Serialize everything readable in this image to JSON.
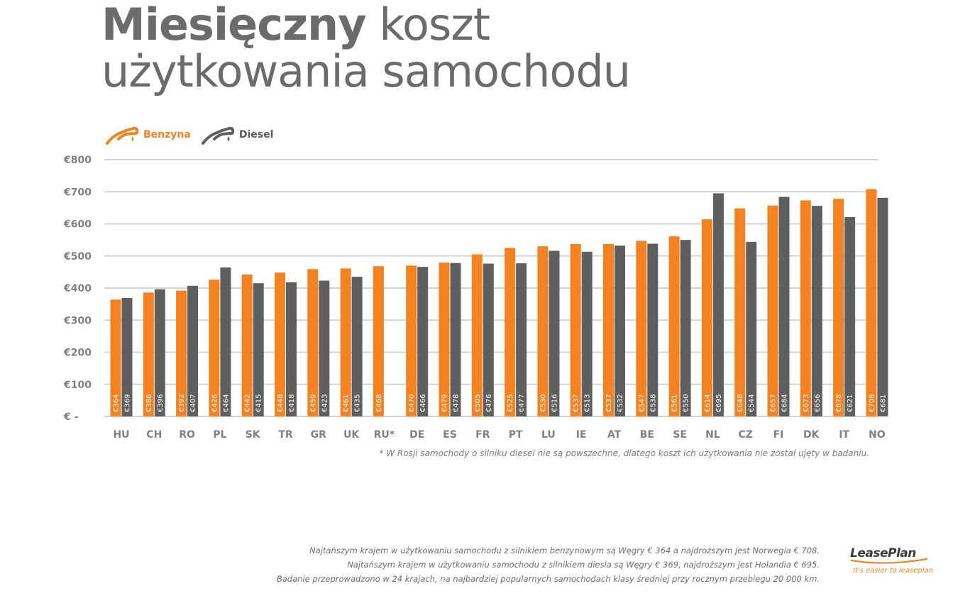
{
  "title": {
    "bold": "Miesięczny",
    "rest_line1": " koszt",
    "line2": "użytkowania samochodu"
  },
  "colors": {
    "benzyna": "#f58220",
    "diesel": "#5f5f5f",
    "grid": "#d4d4d4",
    "axis_text": "#808080"
  },
  "chart_data": {
    "type": "bar",
    "categories": [
      "HU",
      "CH",
      "RO",
      "PL",
      "SK",
      "TR",
      "GR",
      "UK",
      "RU*",
      "DE",
      "ES",
      "FR",
      "PT",
      "LU",
      "IE",
      "AT",
      "BE",
      "SE",
      "NL",
      "CZ",
      "FI",
      "DK",
      "IT",
      "NO"
    ],
    "series": [
      {
        "name": "Benzyna",
        "values": [
          364,
          386,
          392,
          426,
          442,
          448,
          459,
          461,
          468,
          470,
          479,
          505,
          525,
          530,
          537,
          537,
          547,
          561,
          614,
          648,
          657,
          673,
          678,
          708
        ],
        "labels": [
          "€364",
          "€386",
          "€392",
          "€426",
          "€442",
          "€448",
          "€459",
          "€461",
          "€468",
          "€470",
          "€479",
          "€505",
          "€525",
          "€530",
          "€537",
          "€537",
          "€547",
          "€561",
          "€614",
          "€648",
          "€657",
          "€673",
          "€678",
          "€708"
        ]
      },
      {
        "name": "Diesel",
        "values": [
          369,
          396,
          407,
          464,
          415,
          418,
          423,
          435,
          null,
          466,
          478,
          476,
          477,
          516,
          513,
          532,
          538,
          550,
          695,
          544,
          684,
          656,
          621,
          681
        ],
        "labels": [
          "€369",
          "€396",
          "€407",
          "€464",
          "€415",
          "€418",
          "€423",
          "€435",
          "",
          "€466",
          "€478",
          "€476",
          "€477",
          "€516",
          "€513",
          "€532",
          "€538",
          "€550",
          "€695",
          "€544",
          "€684",
          "€656",
          "€621",
          "€681"
        ]
      }
    ],
    "ylim": [
      0,
      800
    ],
    "yticks": [
      0,
      100,
      200,
      300,
      400,
      500,
      600,
      700,
      800
    ],
    "ytick_labels": [
      "€ -",
      "€100",
      "€200",
      "€300",
      "€400",
      "€500",
      "€600",
      "€700",
      "€800"
    ],
    "grid": true,
    "legend_position": "top-left"
  },
  "footnote": "* W Rosji samochody o silniku diesel nie są powszechne, dlatego koszt ich użytkowania nie został ujęty w badaniu.",
  "summary": [
    "Najtańszym krajem w użytkowaniu samochodu z silnikiem benzynowym są Węgry € 364 a najdroższym jest Norwegia  € 708.",
    "Najtańszym krajem w użytkowaniu  samochodu z silnikiem diesla są Węgry € 369, najdroższym jest Holandia  € 695.",
    "Badanie przeprowadzono w 24 krajach, na najbardziej popularnych samochodach klasy średniej przy rocznym przebiegu 20 000 km."
  ],
  "brand": {
    "name": "LeasePlan",
    "tagline": "It's easier to leaseplan",
    "swoosh_icon": "swoosh-icon"
  },
  "legend_icons": {
    "benzyna": "fuel-nozzle-icon",
    "diesel": "fuel-nozzle-icon"
  }
}
